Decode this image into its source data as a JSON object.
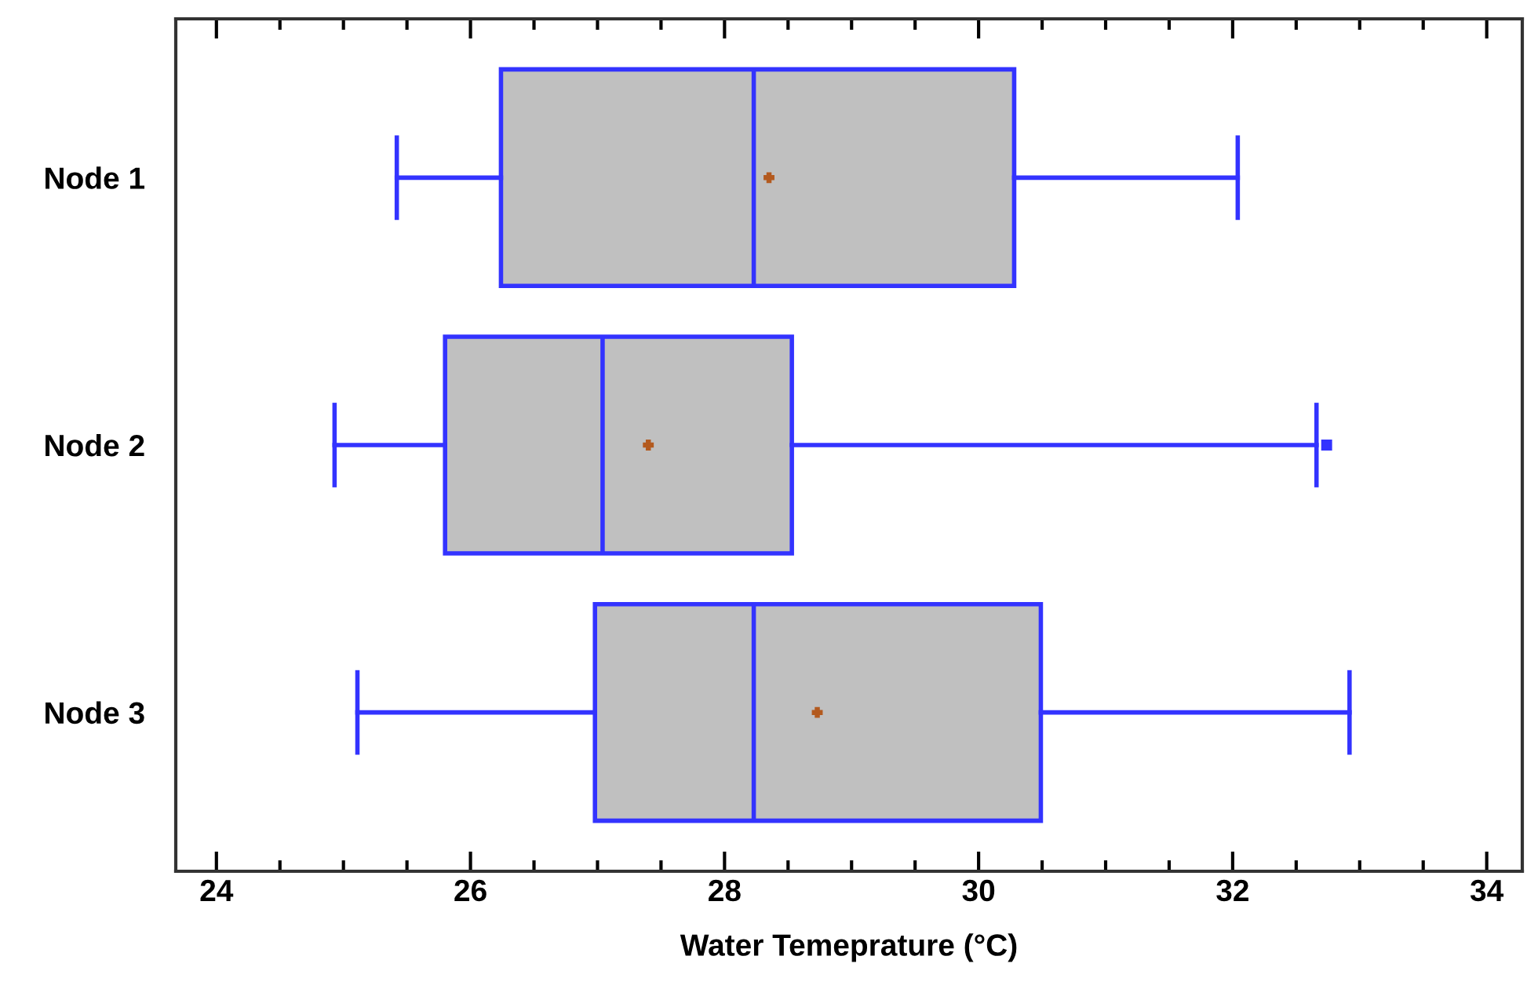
{
  "chart_data": {
    "type": "box",
    "orientation": "horizontal",
    "xlabel": "Water Temeprature (°C)",
    "categories": [
      "Node 1",
      "Node 2",
      "Node 3"
    ],
    "series": [
      {
        "color": "#3333ff",
        "boxes": [
          {
            "low": 25.42,
            "q1": 26.24,
            "median": 28.23,
            "q3": 30.28,
            "high": 32.04,
            "mean": 28.35
          },
          {
            "low": 24.93,
            "q1": 25.8,
            "median": 27.04,
            "q3": 28.53,
            "high": 32.66,
            "mean": 27.4,
            "outliers": [
              32.74
            ]
          },
          {
            "low": 25.11,
            "q1": 26.98,
            "median": 28.23,
            "q3": 30.49,
            "high": 32.92,
            "mean": 28.73
          }
        ]
      }
    ],
    "xlim": [
      23.68,
      34.28
    ],
    "xticks": [
      24,
      {
        "value": 24.5,
        "label": null
      },
      {
        "value": 25,
        "label": null
      },
      {
        "value": 25.5,
        "label": null
      },
      26,
      {
        "value": 26.5,
        "label": null
      },
      {
        "value": 27,
        "label": null
      },
      {
        "value": 27.5,
        "label": null
      },
      28,
      {
        "value": 28.5,
        "label": null
      },
      {
        "value": 29,
        "label": null
      },
      {
        "value": 29.5,
        "label": null
      },
      30,
      {
        "value": 30.5,
        "label": null
      },
      {
        "value": 31,
        "label": null
      },
      {
        "value": 31.5,
        "label": null
      },
      32,
      {
        "value": 32.5,
        "label": null
      },
      {
        "value": 33,
        "label": null
      },
      {
        "value": 33.5,
        "label": null
      },
      34
    ],
    "grid": false
  }
}
